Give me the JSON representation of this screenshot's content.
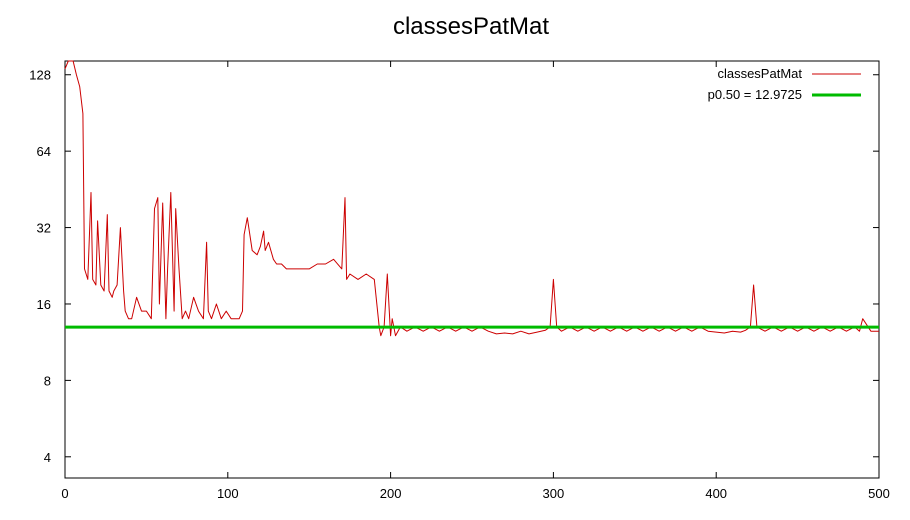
{
  "chart_data": {
    "type": "line",
    "title": "classesPatMat",
    "xlabel": "",
    "ylabel": "",
    "xlim": [
      0,
      500
    ],
    "ylim": [
      3.3,
      145
    ],
    "y_scale": "log2",
    "x_ticks": [
      0,
      100,
      200,
      300,
      400,
      500
    ],
    "x_tick_labels": [
      "0",
      "100",
      "200",
      "300",
      "400",
      "500"
    ],
    "y_ticks": [
      4,
      8,
      16,
      32,
      64,
      128
    ],
    "y_tick_labels": [
      "4",
      "8",
      "16",
      "32",
      "64",
      "128"
    ],
    "grid": false,
    "legend_position": "top-right",
    "series": [
      {
        "name": "classesPatMat",
        "color": "#cc0000",
        "style": "line",
        "x": [
          0,
          2,
          5,
          7,
          9,
          11,
          12,
          14,
          16,
          17,
          19,
          20,
          22,
          24,
          26,
          27,
          29,
          30,
          32,
          34,
          36,
          37,
          39,
          41,
          44,
          47,
          50,
          53,
          55,
          57,
          58,
          60,
          62,
          63,
          65,
          67,
          68,
          70,
          72,
          74,
          76,
          79,
          82,
          85,
          87,
          88,
          90,
          93,
          96,
          99,
          102,
          105,
          107,
          109,
          110,
          112,
          115,
          118,
          120,
          122,
          123,
          125,
          128,
          130,
          133,
          136,
          140,
          145,
          150,
          155,
          160,
          165,
          170,
          172,
          173,
          175,
          180,
          185,
          190,
          193,
          194,
          196,
          198,
          200,
          201,
          203,
          206,
          210,
          215,
          220,
          225,
          230,
          235,
          240,
          245,
          250,
          255,
          260,
          265,
          270,
          275,
          280,
          285,
          290,
          295,
          298,
          300,
          302,
          305,
          310,
          315,
          320,
          325,
          330,
          335,
          340,
          345,
          350,
          355,
          360,
          365,
          370,
          375,
          380,
          385,
          390,
          395,
          400,
          405,
          410,
          415,
          418,
          421,
          423,
          425,
          430,
          435,
          440,
          445,
          450,
          455,
          460,
          465,
          470,
          475,
          480,
          485,
          488,
          490,
          495,
          500
        ],
        "y": [
          135,
          160,
          145,
          128,
          115,
          90,
          22,
          20,
          44,
          20,
          19,
          34,
          19,
          18,
          36,
          18,
          17,
          18,
          19,
          32,
          18,
          15,
          14,
          14,
          17,
          15,
          15,
          14,
          38,
          42,
          16,
          40,
          14,
          22,
          44,
          15,
          38,
          22,
          14,
          15,
          14,
          17,
          15,
          14,
          28,
          15,
          14,
          16,
          14,
          15,
          14,
          14,
          14,
          15,
          30,
          35,
          26,
          25,
          27,
          31,
          26,
          28,
          24,
          23,
          23,
          22,
          22,
          22,
          22,
          23,
          23,
          24,
          22,
          42,
          20,
          21,
          20,
          21,
          20,
          13,
          12,
          13,
          21,
          12,
          14,
          12,
          13,
          12.5,
          13,
          12.5,
          13,
          12.5,
          13,
          12.5,
          13,
          12.5,
          13,
          12.5,
          12.2,
          12.3,
          12.2,
          12.5,
          12.2,
          12.4,
          12.6,
          13,
          20,
          13,
          12.5,
          13,
          12.5,
          13,
          12.5,
          13,
          12.5,
          13,
          12.5,
          13,
          12.5,
          13,
          12.5,
          13,
          12.5,
          13,
          12.5,
          13,
          12.5,
          12.4,
          12.3,
          12.5,
          12.4,
          12.6,
          13,
          19,
          13,
          12.5,
          13,
          12.5,
          13,
          12.5,
          13,
          12.5,
          13,
          12.5,
          13,
          12.5,
          13,
          12.5,
          14,
          12.5,
          12.5
        ]
      },
      {
        "name": "p0.50 = 12.9725",
        "color": "#00bb00",
        "style": "hline",
        "y_value": 12.9725
      }
    ]
  }
}
